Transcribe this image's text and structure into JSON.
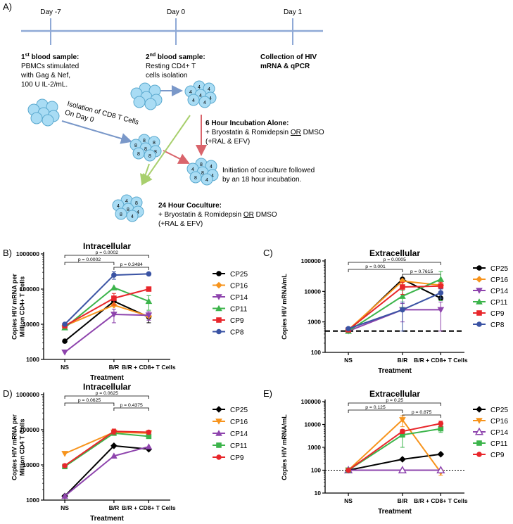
{
  "figure": {
    "panel_a": {
      "label": "A)",
      "timeline": {
        "day_m7": "Day -7",
        "day_0": "Day 0",
        "day_1": "Day 1"
      },
      "sample1": {
        "title_pre": "1",
        "title_sup": "st",
        "title_post": " blood sample:",
        "lines": [
          "PBMCs stimulated",
          "with Gag & Nef,",
          "100 U IL-2/mL."
        ]
      },
      "sample2": {
        "title_pre": "2",
        "title_sup": "nd",
        "title_post": " blood sample:",
        "lines": [
          "Resting CD4+ T",
          "cells isolation"
        ]
      },
      "collection": {
        "lines": [
          "Collection of HIV",
          "mRNA & qPCR"
        ]
      },
      "isolation": {
        "lines": [
          "Isolation of CD8 T Cells",
          "On Day 0"
        ]
      },
      "incubation": {
        "title": "6 Hour Incubation Alone:",
        "line1_pre": "+ Bryostatin & Romidepsin ",
        "line1_or": "OR",
        "line1_post": " DMSO",
        "line2": "(+RAL & EFV)"
      },
      "coculture_init": {
        "lines": [
          "Initiation of coculture followed",
          "by an 18 hour incubation."
        ]
      },
      "coculture24": {
        "title": "24 Hour Coculture:",
        "line1_pre": "+ Bryostatin & Romidepsin ",
        "line1_or": "OR",
        "line1_post": " DMSO",
        "line2": "(+RAL & EFV)"
      },
      "cell_labels": {
        "four": "4",
        "eight": "8"
      }
    },
    "colors": {
      "CP25": "#000000",
      "CP16": "#f7941d",
      "CP14": "#8e44ad",
      "CP11": "#3cb44b",
      "CP9": "#e8262b",
      "CP8": "#3a53a4",
      "cell_fill": "#a9dcf4",
      "cell_stroke": "#5aa9cf",
      "arrow_blue": "#7a98c9",
      "arrow_red": "#d9646b",
      "arrow_green": "#a8cf6d",
      "timeline": "#8fa9d6"
    }
  },
  "chart_data": [
    {
      "panel": "B)",
      "type": "line",
      "title": "Intracellular",
      "ylabel": [
        "Copies HIV mRNA per",
        "Million CD4+ T Cells"
      ],
      "xlabel": "Treatment",
      "categories": [
        "NS",
        "B/R",
        "B/R + CD8+ T Cells"
      ],
      "yscale": "log",
      "ylim": [
        1000,
        1000000
      ],
      "yticks": [
        1000,
        10000,
        100000,
        1000000
      ],
      "ytick_labels": [
        "1000",
        "10000",
        "100000",
        "1000000"
      ],
      "reference_line": null,
      "brackets": [
        {
          "from": 0,
          "to": 2,
          "label": "p = 0.0002"
        },
        {
          "from": 0,
          "to": 1,
          "label": "p = 0.0002"
        },
        {
          "from": 1,
          "to": 2,
          "label": "p = 0.3484"
        }
      ],
      "series": [
        {
          "name": "CP25",
          "marker": "circle",
          "values": [
            3300,
            45000,
            16000
          ],
          "err": [
            0,
            0,
            5000
          ]
        },
        {
          "name": "CP16",
          "marker": "diamond",
          "values": [
            9000,
            35000,
            17000
          ],
          "err": [
            0,
            0,
            0
          ]
        },
        {
          "name": "CP14",
          "marker": "triangle-down",
          "values": [
            1600,
            19000,
            18000
          ],
          "err": [
            0,
            8000,
            5000
          ]
        },
        {
          "name": "CP11",
          "marker": "triangle-up",
          "values": [
            8000,
            110000,
            45000
          ],
          "err": [
            0,
            0,
            20000
          ]
        },
        {
          "name": "CP9",
          "marker": "square",
          "values": [
            9000,
            55000,
            100000
          ],
          "err": [
            0,
            20000,
            0
          ]
        },
        {
          "name": "CP8",
          "marker": "circle",
          "values": [
            10000,
            250000,
            270000
          ],
          "err": [
            0,
            60000,
            0
          ]
        }
      ]
    },
    {
      "panel": "C)",
      "type": "line",
      "title": "Extracellular",
      "ylabel": [
        "Copies HIV mRNA/mL"
      ],
      "xlabel": "Treatment",
      "categories": [
        "NS",
        "B/R",
        "B/R + CD8+ T Cells"
      ],
      "yscale": "log",
      "ylim": [
        100,
        100000
      ],
      "yticks": [
        100,
        1000,
        10000,
        100000
      ],
      "ytick_labels": [
        "100",
        "1000",
        "10000",
        "100000"
      ],
      "reference_line": {
        "value": 500,
        "style": "thick-dashed"
      },
      "brackets": [
        {
          "from": 0,
          "to": 2,
          "label": "p = 0.0005"
        },
        {
          "from": 0,
          "to": 1,
          "label": "p = 0.001"
        },
        {
          "from": 1,
          "to": 2,
          "label": "p = 0.7615"
        }
      ],
      "series": [
        {
          "name": "CP25",
          "marker": "circle",
          "values": [
            500,
            25000,
            6000
          ],
          "err": [
            0,
            0,
            0
          ]
        },
        {
          "name": "CP16",
          "marker": "diamond",
          "values": [
            550,
            22000,
            16000
          ],
          "err": [
            0,
            0,
            0
          ]
        },
        {
          "name": "CP14",
          "marker": "triangle-down",
          "values": [
            500,
            2500,
            2500
          ],
          "err": [
            0,
            1500,
            2000
          ]
        },
        {
          "name": "CP11",
          "marker": "triangle-up",
          "values": [
            500,
            7000,
            25000
          ],
          "err": [
            0,
            4000,
            20000
          ]
        },
        {
          "name": "CP9",
          "marker": "square",
          "values": [
            550,
            14000,
            15000
          ],
          "err": [
            0,
            6000,
            5000
          ]
        },
        {
          "name": "CP8",
          "marker": "circle",
          "values": [
            600,
            2500,
            9000
          ],
          "err": [
            0,
            2000,
            3000
          ]
        }
      ]
    },
    {
      "panel": "D)",
      "type": "line",
      "title": "Intracellular",
      "ylabel": [
        "Copies HIV mRNA per",
        "Million CD4 T Cells"
      ],
      "xlabel": "Treatment",
      "categories": [
        "NS",
        "B/R",
        "B/R + CD8+ T Cells"
      ],
      "yscale": "log",
      "ylim": [
        1000,
        1000000
      ],
      "yticks": [
        1000,
        10000,
        100000,
        1000000
      ],
      "ytick_labels": [
        "1000",
        "10000",
        "100000",
        "1000000"
      ],
      "reference_line": null,
      "brackets": [
        {
          "from": 0,
          "to": 2,
          "label": "p = 0.0625"
        },
        {
          "from": 0,
          "to": 1,
          "label": "p = 0.0625"
        },
        {
          "from": 1,
          "to": 2,
          "label": "p = 0.4375"
        }
      ],
      "series": [
        {
          "name": "CP25",
          "marker": "diamond",
          "values": [
            1300,
            35000,
            28000
          ],
          "err": [
            0,
            0,
            0
          ]
        },
        {
          "name": "CP16",
          "marker": "triangle-down",
          "values": [
            21000,
            85000,
            80000
          ],
          "err": [
            0,
            15000,
            15000
          ]
        },
        {
          "name": "CP14",
          "marker": "triangle-up",
          "values": [
            1300,
            18000,
            33000
          ],
          "err": [
            0,
            0,
            0
          ]
        },
        {
          "name": "CP11",
          "marker": "square",
          "values": [
            9000,
            80000,
            65000
          ],
          "err": [
            0,
            0,
            0
          ]
        },
        {
          "name": "CP9",
          "marker": "circle",
          "values": [
            9500,
            90000,
            85000
          ],
          "err": [
            0,
            15000,
            10000
          ]
        }
      ]
    },
    {
      "panel": "E)",
      "type": "line",
      "title": "Extracellular",
      "ylabel": [
        "Copies HIV mRNA/mL"
      ],
      "xlabel": "Treatment",
      "categories": [
        "NS",
        "B/R",
        "B/R + CD8+ T Cells"
      ],
      "yscale": "log",
      "ylim": [
        10,
        100000
      ],
      "yticks": [
        10,
        100,
        1000,
        10000,
        100000
      ],
      "ytick_labels": [
        "10",
        "100",
        "1000",
        "10000",
        "100000"
      ],
      "reference_line": {
        "value": 100,
        "style": "thin-dotted"
      },
      "brackets": [
        {
          "from": 0,
          "to": 2,
          "label": "p = 0.25"
        },
        {
          "from": 0,
          "to": 1,
          "label": "p = 0.125"
        },
        {
          "from": 1,
          "to": 2,
          "label": "p = 0.875"
        }
      ],
      "series": [
        {
          "name": "CP25",
          "marker": "diamond",
          "values": [
            100,
            300,
            500
          ],
          "err": [
            0,
            0,
            0
          ]
        },
        {
          "name": "CP16",
          "marker": "triangle-down",
          "values": [
            100,
            16000,
            80
          ],
          "err": [
            0,
            8000,
            20
          ]
        },
        {
          "name": "CP14",
          "marker": "triangle-up-open",
          "values": [
            100,
            100,
            100
          ],
          "err": [
            0,
            0,
            0
          ]
        },
        {
          "name": "CP11",
          "marker": "square",
          "values": [
            100,
            3500,
            6500
          ],
          "err": [
            0,
            2500,
            2000
          ]
        },
        {
          "name": "CP9",
          "marker": "circle",
          "values": [
            100,
            5000,
            11000
          ],
          "err": [
            0,
            1000,
            3000
          ]
        }
      ]
    }
  ]
}
